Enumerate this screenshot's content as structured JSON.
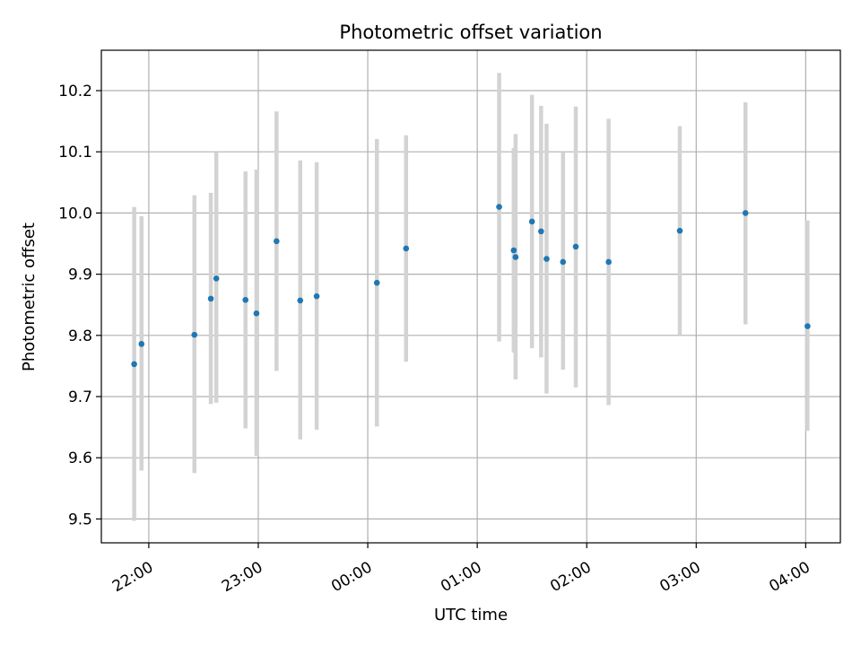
{
  "chart_data": {
    "type": "scatter",
    "title": "Photometric offset variation",
    "xlabel": "UTC time",
    "ylabel": "Photometric offset",
    "x_unit": "UTC clock time (HH:MM), observing night spans midnight",
    "x_ticks": [
      "22:00",
      "23:00",
      "00:00",
      "01:00",
      "02:00",
      "03:00",
      "04:00"
    ],
    "y_ticks": [
      "9.5",
      "9.6",
      "9.7",
      "9.8",
      "9.9",
      "10.0",
      "10.1",
      "10.2"
    ],
    "xlim": [
      "21:34",
      "04:19"
    ],
    "ylim": [
      9.461,
      10.266
    ],
    "grid": true,
    "colors": {
      "points": "#1f77b4",
      "error_bars": "#d3d3d3",
      "grid": "#b0b0b0",
      "axes": "#000000"
    },
    "points": [
      {
        "time": "21:52",
        "y": 9.753,
        "y_low": 9.497,
        "y_high": 10.01
      },
      {
        "time": "21:56",
        "y": 9.786,
        "y_low": 9.579,
        "y_high": 9.995
      },
      {
        "time": "22:25",
        "y": 9.801,
        "y_low": 9.575,
        "y_high": 10.029
      },
      {
        "time": "22:34",
        "y": 9.86,
        "y_low": 9.688,
        "y_high": 10.033
      },
      {
        "time": "22:37",
        "y": 9.893,
        "y_low": 9.69,
        "y_high": 10.1
      },
      {
        "time": "22:53",
        "y": 9.858,
        "y_low": 9.648,
        "y_high": 10.068
      },
      {
        "time": "22:59",
        "y": 9.836,
        "y_low": 9.603,
        "y_high": 10.071
      },
      {
        "time": "23:10",
        "y": 9.954,
        "y_low": 9.742,
        "y_high": 10.166
      },
      {
        "time": "23:23",
        "y": 9.857,
        "y_low": 9.63,
        "y_high": 10.086
      },
      {
        "time": "23:32",
        "y": 9.864,
        "y_low": 9.646,
        "y_high": 10.083
      },
      {
        "time": "00:05",
        "y": 9.886,
        "y_low": 9.651,
        "y_high": 10.121
      },
      {
        "time": "00:21",
        "y": 9.942,
        "y_low": 9.757,
        "y_high": 10.127
      },
      {
        "time": "01:12",
        "y": 10.01,
        "y_low": 9.79,
        "y_high": 10.229
      },
      {
        "time": "01:20",
        "y": 9.939,
        "y_low": 9.772,
        "y_high": 10.106
      },
      {
        "time": "01:21",
        "y": 9.928,
        "y_low": 9.728,
        "y_high": 10.129
      },
      {
        "time": "01:30",
        "y": 9.986,
        "y_low": 9.779,
        "y_high": 10.193
      },
      {
        "time": "01:35",
        "y": 9.97,
        "y_low": 9.764,
        "y_high": 10.175
      },
      {
        "time": "01:38",
        "y": 9.925,
        "y_low": 9.705,
        "y_high": 10.146
      },
      {
        "time": "01:47",
        "y": 9.92,
        "y_low": 9.744,
        "y_high": 10.1
      },
      {
        "time": "01:54",
        "y": 9.945,
        "y_low": 9.715,
        "y_high": 10.174
      },
      {
        "time": "02:12",
        "y": 9.92,
        "y_low": 9.686,
        "y_high": 10.154
      },
      {
        "time": "02:51",
        "y": 9.971,
        "y_low": 9.8,
        "y_high": 10.142
      },
      {
        "time": "03:27",
        "y": 10.0,
        "y_low": 9.818,
        "y_high": 10.181
      },
      {
        "time": "04:01",
        "y": 9.815,
        "y_low": 9.644,
        "y_high": 9.988
      }
    ]
  }
}
